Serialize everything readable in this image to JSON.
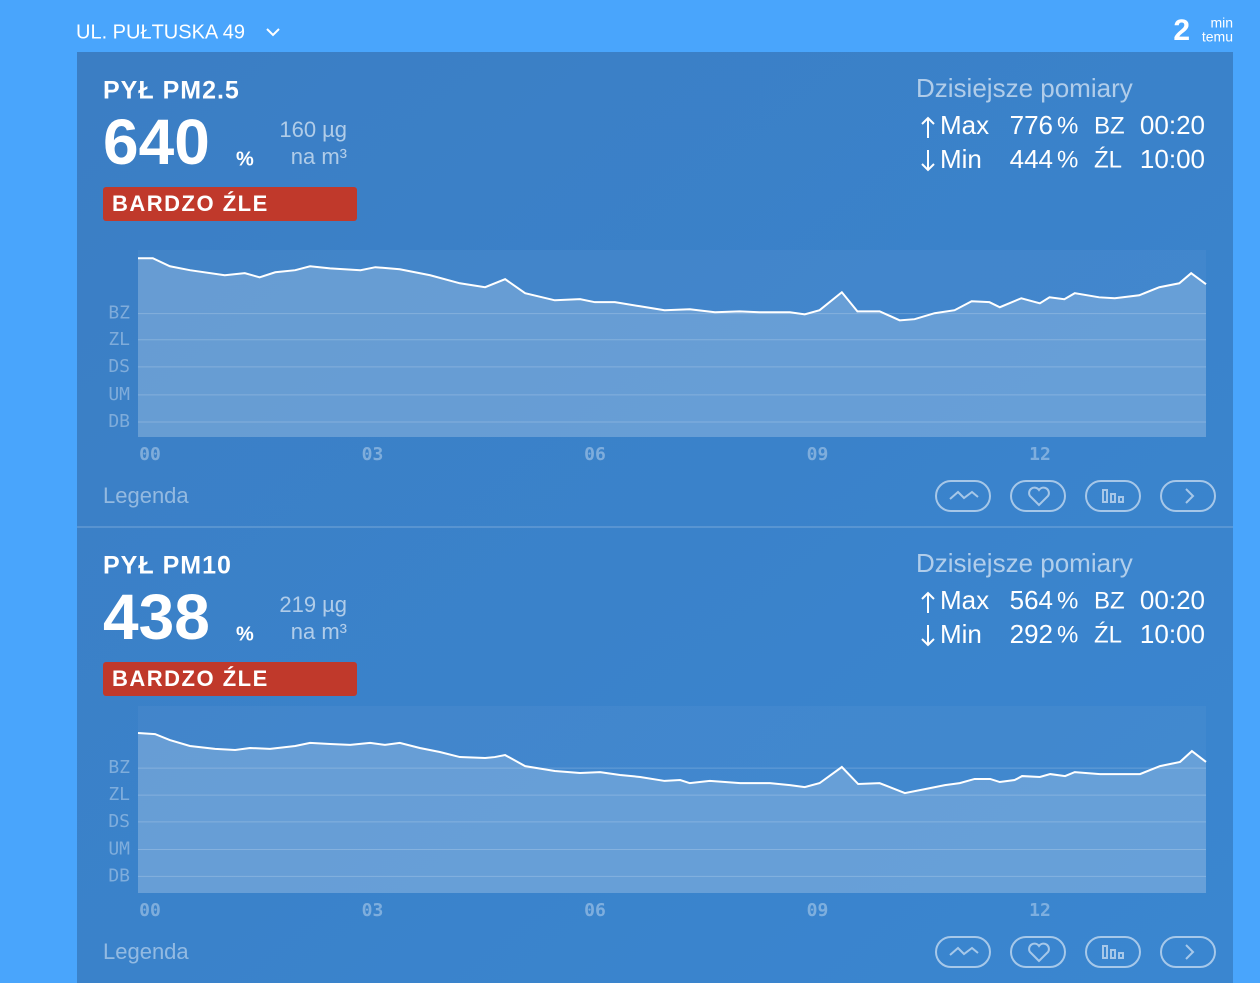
{
  "header": {
    "location": "UL. PUŁTUSKA 49",
    "updated_value": 2,
    "updated_unit_top": "min",
    "updated_unit_bottom": "temu"
  },
  "panels": [
    {
      "title": "PYŁ PM2.5",
      "percent": 640,
      "percent_unit": "%",
      "concentration": 160,
      "concentration_unit": "µg",
      "concentration_per": "na m³",
      "status": "BARDZO ŹLE",
      "stats_title": "Dzisiejsze pomiary",
      "max_label": "Max",
      "max_value": 776,
      "max_unit": "%",
      "max_level": "BZ",
      "max_time": "00:20",
      "min_label": "Min",
      "min_value": 444,
      "min_unit": "%",
      "min_level": "ŹL",
      "min_time": "10:00",
      "legend": "Legenda",
      "chart_data": {
        "type": "area",
        "color": "#ffffff",
        "grid": true,
        "xlim": [
          0,
          14.4
        ],
        "ylim": [
          -180,
          820
        ],
        "xticks": [
          {
            "value": 0,
            "label": "00"
          },
          {
            "value": 3,
            "label": "03"
          },
          {
            "value": 6,
            "label": "06"
          },
          {
            "value": 9,
            "label": "09"
          },
          {
            "value": 12,
            "label": "12"
          }
        ],
        "yticks": [
          {
            "value": 480,
            "label": "BZ"
          },
          {
            "value": 340,
            "label": "ZL"
          },
          {
            "value": 195,
            "label": "DS"
          },
          {
            "value": 45,
            "label": "UM"
          },
          {
            "value": -100,
            "label": "DB"
          }
        ],
        "x": [
          0,
          0.2,
          0.43,
          0.7,
          1.17,
          1.44,
          1.64,
          1.85,
          2.12,
          2.32,
          2.59,
          3.0,
          3.2,
          3.53,
          3.94,
          4.34,
          4.68,
          4.95,
          5.22,
          5.62,
          5.96,
          6.16,
          6.43,
          6.77,
          7.1,
          7.44,
          7.78,
          8.11,
          8.38,
          8.79,
          8.99,
          9.19,
          9.49,
          9.7,
          10.0,
          10.27,
          10.47,
          10.74,
          11.01,
          11.24,
          11.48,
          11.62,
          11.91,
          12.16,
          12.29,
          12.49,
          12.63,
          12.96,
          13.17,
          13.5,
          13.77,
          14.04,
          14.2,
          14.4
        ],
        "values": [
          776,
          776,
          733,
          712,
          685,
          696,
          674,
          701,
          712,
          733,
          722,
          712,
          728,
          717,
          685,
          642,
          621,
          664,
          589,
          551,
          557,
          541,
          541,
          519,
          498,
          503,
          487,
          492,
          487,
          487,
          476,
          498,
          594,
          492,
          492,
          444,
          450,
          482,
          498,
          546,
          541,
          514,
          562,
          535,
          567,
          557,
          589,
          567,
          562,
          578,
          621,
          642,
          696,
          637
        ]
      }
    },
    {
      "title": "PYŁ PM10",
      "percent": 438,
      "percent_unit": "%",
      "concentration": 219,
      "concentration_unit": "µg",
      "concentration_per": "na m³",
      "status": "BARDZO ŹLE",
      "stats_title": "Dzisiejsze pomiary",
      "max_label": "Max",
      "max_value": 564,
      "max_unit": "%",
      "max_level": "BZ",
      "max_time": "00:20",
      "min_label": "Min",
      "min_value": 292,
      "min_unit": "%",
      "min_level": "ŹL",
      "min_time": "10:00",
      "legend": "Legenda",
      "chart_data": {
        "type": "area",
        "color": "#ffffff",
        "grid": true,
        "xlim": [
          0,
          14.4
        ],
        "ylim": [
          -160,
          686
        ],
        "xticks": [
          {
            "value": 0,
            "label": "00"
          },
          {
            "value": 3,
            "label": "03"
          },
          {
            "value": 6,
            "label": "06"
          },
          {
            "value": 9,
            "label": "09"
          },
          {
            "value": 12,
            "label": "12"
          }
        ],
        "yticks": [
          {
            "value": 405,
            "label": "BZ"
          },
          {
            "value": 283,
            "label": "ZL"
          },
          {
            "value": 162,
            "label": "DS"
          },
          {
            "value": 37,
            "label": "UM"
          },
          {
            "value": -85,
            "label": "DB"
          }
        ],
        "x": [
          0,
          0.23,
          0.43,
          0.7,
          1.04,
          1.31,
          1.51,
          1.78,
          2.12,
          2.32,
          2.59,
          2.86,
          3.13,
          3.33,
          3.53,
          3.8,
          4.07,
          4.34,
          4.68,
          4.81,
          4.95,
          5.22,
          5.62,
          5.96,
          6.23,
          6.5,
          6.77,
          7.1,
          7.31,
          7.44,
          7.71,
          8.12,
          8.52,
          8.79,
          8.99,
          9.19,
          9.49,
          9.71,
          10.0,
          10.34,
          10.61,
          10.88,
          11.08,
          11.28,
          11.49,
          11.62,
          11.82,
          11.92,
          12.16,
          12.3,
          12.5,
          12.63,
          12.97,
          13.51,
          13.78,
          14.05,
          14.21,
          14.4
        ],
        "values": [
          564,
          559,
          532,
          505,
          492,
          487,
          496,
          492,
          505,
          519,
          514,
          510,
          519,
          510,
          519,
          496,
          478,
          455,
          451,
          455,
          464,
          414,
          392,
          383,
          387,
          374,
          365,
          347,
          351,
          337,
          347,
          337,
          337,
          328,
          319,
          337,
          410,
          333,
          337,
          292,
          310,
          328,
          337,
          356,
          356,
          342,
          351,
          369,
          365,
          378,
          369,
          387,
          378,
          378,
          414,
          433,
          482,
          433
        ]
      }
    }
  ]
}
